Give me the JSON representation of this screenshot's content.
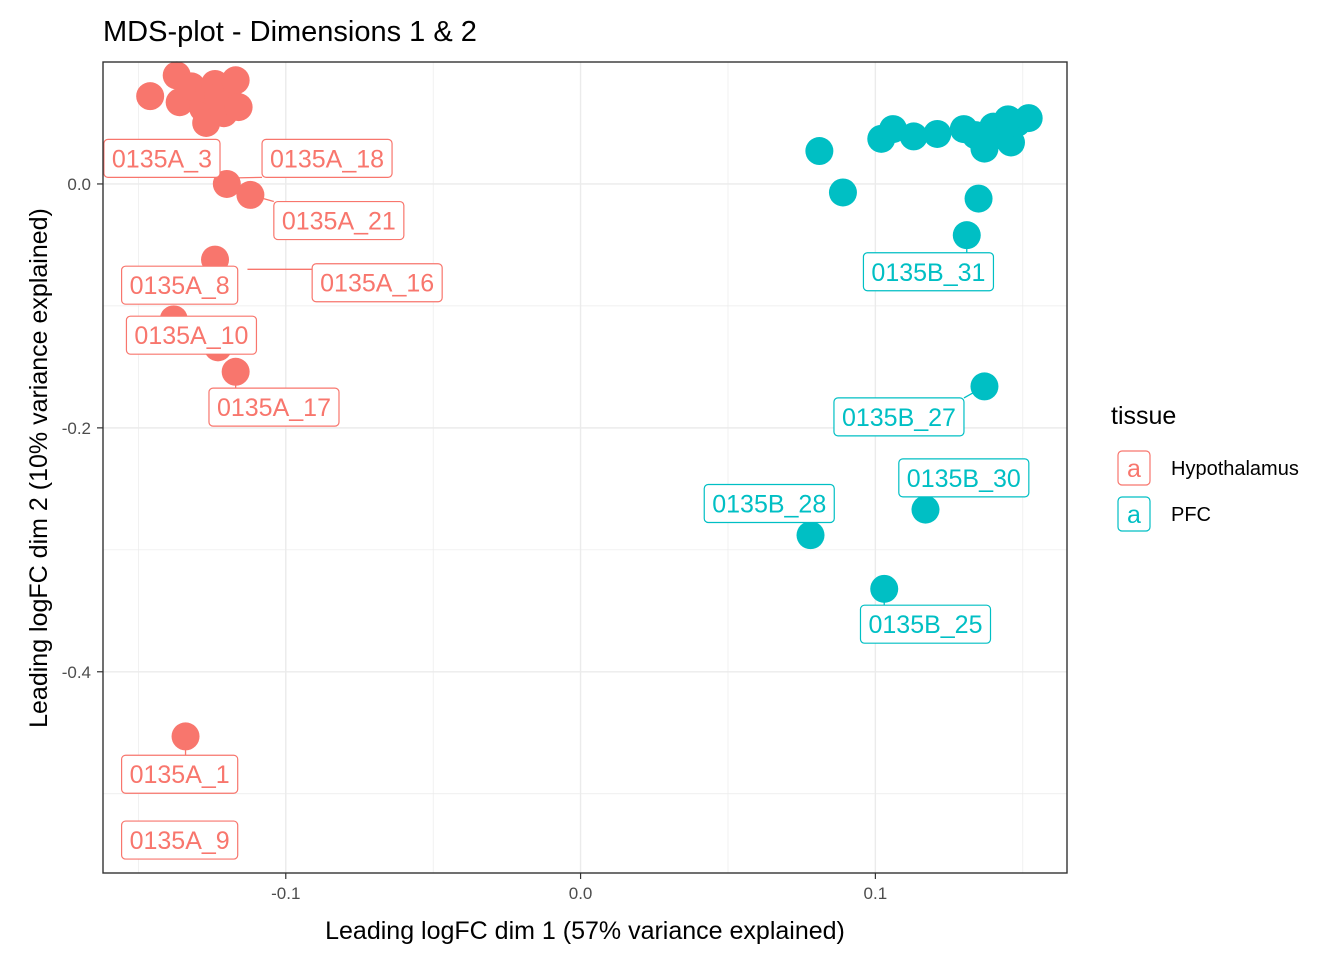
{
  "chart_data": {
    "type": "scatter",
    "title": "MDS-plot - Dimensions 1 & 2",
    "xlabel": "Leading logFC dim 1 (57% variance explained)",
    "ylabel": "Leading logFC dim 2 (10% variance explained)",
    "xlim": [
      -0.162,
      0.165
    ],
    "ylim": [
      -0.565,
      0.1
    ],
    "x_ticks": [
      {
        "value": -0.1,
        "label": "-0.1"
      },
      {
        "value": 0.0,
        "label": "0.0"
      },
      {
        "value": 0.1,
        "label": "0.1"
      }
    ],
    "y_ticks": [
      {
        "value": 0.0,
        "label": "0.0"
      },
      {
        "value": -0.2,
        "label": "-0.2"
      },
      {
        "value": -0.4,
        "label": "-0.4"
      }
    ],
    "grid": true,
    "legend": {
      "title": "tissue",
      "position": "right",
      "key_glyph": "a",
      "entries": [
        {
          "name": "Hypothalamus",
          "color": "#F8766D"
        },
        {
          "name": "PFC",
          "color": "#00BFC4"
        }
      ]
    },
    "series": [
      {
        "name": "Hypothalamus",
        "color": "#F8766D",
        "points": [
          {
            "x": -0.146,
            "y": 0.072
          },
          {
            "x": -0.137,
            "y": 0.089
          },
          {
            "x": -0.136,
            "y": 0.067
          },
          {
            "x": -0.132,
            "y": 0.08
          },
          {
            "x": -0.128,
            "y": 0.062
          },
          {
            "x": -0.127,
            "y": 0.05
          },
          {
            "x": -0.126,
            "y": 0.077
          },
          {
            "x": -0.124,
            "y": 0.082
          },
          {
            "x": -0.123,
            "y": 0.071
          },
          {
            "x": -0.121,
            "y": 0.058
          },
          {
            "x": -0.119,
            "y": 0.068
          },
          {
            "x": -0.117,
            "y": 0.085
          },
          {
            "x": -0.116,
            "y": 0.063
          },
          {
            "x": -0.12,
            "y": 0.0
          },
          {
            "x": -0.112,
            "y": -0.009
          },
          {
            "x": -0.124,
            "y": -0.062
          },
          {
            "x": -0.138,
            "y": -0.111
          },
          {
            "x": -0.123,
            "y": -0.134
          },
          {
            "x": -0.117,
            "y": -0.154
          },
          {
            "x": -0.134,
            "y": -0.453
          }
        ]
      },
      {
        "name": "PFC",
        "color": "#00BFC4",
        "points": [
          {
            "x": 0.081,
            "y": 0.027
          },
          {
            "x": 0.102,
            "y": 0.037
          },
          {
            "x": 0.106,
            "y": 0.045
          },
          {
            "x": 0.113,
            "y": 0.039
          },
          {
            "x": 0.121,
            "y": 0.041
          },
          {
            "x": 0.13,
            "y": 0.045
          },
          {
            "x": 0.134,
            "y": 0.04
          },
          {
            "x": 0.137,
            "y": 0.029
          },
          {
            "x": 0.14,
            "y": 0.047
          },
          {
            "x": 0.142,
            "y": 0.04
          },
          {
            "x": 0.145,
            "y": 0.053
          },
          {
            "x": 0.146,
            "y": 0.034
          },
          {
            "x": 0.148,
            "y": 0.05
          },
          {
            "x": 0.152,
            "y": 0.054
          },
          {
            "x": 0.089,
            "y": -0.007
          },
          {
            "x": 0.135,
            "y": -0.012
          },
          {
            "x": 0.131,
            "y": -0.042
          },
          {
            "x": 0.137,
            "y": -0.166
          },
          {
            "x": 0.117,
            "y": -0.267
          },
          {
            "x": 0.078,
            "y": -0.288
          },
          {
            "x": 0.103,
            "y": -0.332
          }
        ]
      }
    ],
    "annotations": [
      {
        "text": "0135A_3",
        "series": "Hypothalamus",
        "x": -0.142,
        "y": 0.021,
        "px": -0.127,
        "py": 0.021
      },
      {
        "text": "0135A_18",
        "series": "Hypothalamus",
        "x": -0.086,
        "y": 0.021,
        "px": -0.117,
        "py": 0.005
      },
      {
        "text": "0135A_21",
        "series": "Hypothalamus",
        "x": -0.082,
        "y": -0.03,
        "px": -0.112,
        "py": -0.009
      },
      {
        "text": "0135A_8",
        "series": "Hypothalamus",
        "x": -0.136,
        "y": -0.083,
        "px": -0.124,
        "py": -0.062
      },
      {
        "text": "0135A_16",
        "series": "Hypothalamus",
        "x": -0.069,
        "y": -0.081,
        "px": -0.113,
        "py": -0.07
      },
      {
        "text": "0135A_10",
        "series": "Hypothalamus",
        "x": -0.132,
        "y": -0.124,
        "px": -0.138,
        "py": -0.111
      },
      {
        "text": "0135A_17",
        "series": "Hypothalamus",
        "x": -0.104,
        "y": -0.183,
        "px": -0.117,
        "py": -0.154
      },
      {
        "text": "0135A_1",
        "series": "Hypothalamus",
        "x": -0.136,
        "y": -0.484,
        "px": -0.134,
        "py": -0.453
      },
      {
        "text": "0135A_9",
        "series": "Hypothalamus",
        "x": -0.136,
        "y": -0.538,
        "px": -0.13,
        "py": -0.527
      },
      {
        "text": "0135B_31",
        "series": "PFC",
        "x": 0.118,
        "y": -0.072,
        "px": 0.131,
        "py": -0.042
      },
      {
        "text": "0135B_27",
        "series": "PFC",
        "x": 0.108,
        "y": -0.191,
        "px": 0.137,
        "py": -0.166
      },
      {
        "text": "0135B_30",
        "series": "PFC",
        "x": 0.13,
        "y": -0.241,
        "px": 0.117,
        "py": -0.267
      },
      {
        "text": "0135B_28",
        "series": "PFC",
        "x": 0.064,
        "y": -0.262,
        "px": 0.078,
        "py": -0.288
      },
      {
        "text": "0135B_25",
        "series": "PFC",
        "x": 0.117,
        "y": -0.361,
        "px": 0.103,
        "py": -0.332
      }
    ]
  }
}
